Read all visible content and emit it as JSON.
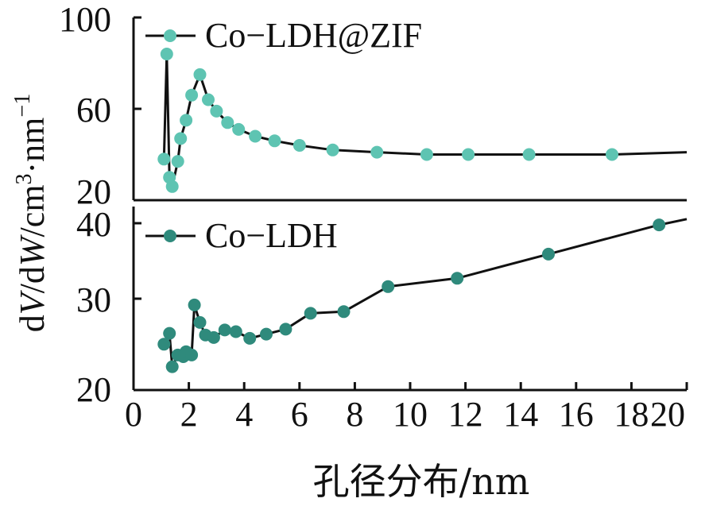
{
  "chart_data": [
    {
      "type": "line",
      "panel": "top",
      "series": [
        {
          "name": "Co-LDH@ZIF",
          "color": "#5ec4b2",
          "marker": "circle",
          "x": [
            1.1,
            1.2,
            1.3,
            1.4,
            1.6,
            1.7,
            1.9,
            2.1,
            2.4,
            2.7,
            3.0,
            3.4,
            3.8,
            4.4,
            5.1,
            6.0,
            7.2,
            8.8,
            10.6,
            12.1,
            14.3,
            17.3,
            20.0
          ],
          "y": [
            38,
            84,
            30,
            26,
            37,
            47,
            55,
            66,
            75,
            64,
            59,
            54,
            51,
            48,
            46,
            44,
            42,
            41,
            40,
            40,
            40,
            40,
            41
          ],
          "marker_shown": [
            true,
            true,
            true,
            true,
            true,
            true,
            true,
            true,
            true,
            true,
            true,
            true,
            true,
            true,
            true,
            true,
            true,
            true,
            true,
            true,
            true,
            true,
            false
          ]
        }
      ],
      "ylim": [
        20,
        100
      ],
      "yticks": [
        "20",
        "60",
        "100"
      ],
      "yticks_values": [
        20,
        60,
        100
      ]
    },
    {
      "type": "line",
      "panel": "bottom",
      "series": [
        {
          "name": "Co-LDH",
          "color": "#2f8a7c",
          "marker": "circle",
          "x": [
            1.1,
            1.3,
            1.4,
            1.6,
            1.8,
            1.9,
            2.1,
            2.2,
            2.4,
            2.6,
            2.9,
            3.3,
            3.7,
            4.2,
            4.8,
            5.5,
            6.4,
            7.6,
            9.2,
            11.7,
            15.0,
            19.0,
            20.0
          ],
          "y": [
            25.5,
            26.8,
            22.8,
            24.2,
            24.0,
            24.6,
            24.2,
            30.2,
            28.1,
            26.6,
            26.3,
            27.2,
            27.0,
            26.2,
            26.7,
            27.3,
            29.2,
            29.4,
            32.4,
            33.4,
            36.3,
            39.8,
            40.5
          ],
          "marker_shown": [
            true,
            true,
            true,
            true,
            true,
            true,
            true,
            true,
            true,
            true,
            true,
            true,
            true,
            true,
            true,
            true,
            true,
            true,
            true,
            true,
            true,
            true,
            false
          ]
        }
      ],
      "ylim": [
        20,
        42
      ],
      "yticks": [
        "20",
        "30",
        "40"
      ],
      "yticks_values": [
        20,
        30,
        40
      ]
    }
  ],
  "axes": {
    "xlim": [
      0,
      20
    ],
    "xticks": [
      "0",
      "2",
      "4",
      "6",
      "8",
      "10",
      "12",
      "14",
      "16",
      "18",
      "20"
    ],
    "xlabel": "孔径分布/nm",
    "ylabel": {
      "d1": "d",
      "v": "V",
      "slash_d": "/d",
      "w": "W",
      "slash_cm": "/cm",
      "sup3": "3",
      "dot_nm": "·nm",
      "supneg1": "−1"
    }
  },
  "legend": {
    "top": "Co−LDH@ZIF",
    "bottom": "Co−LDH"
  }
}
